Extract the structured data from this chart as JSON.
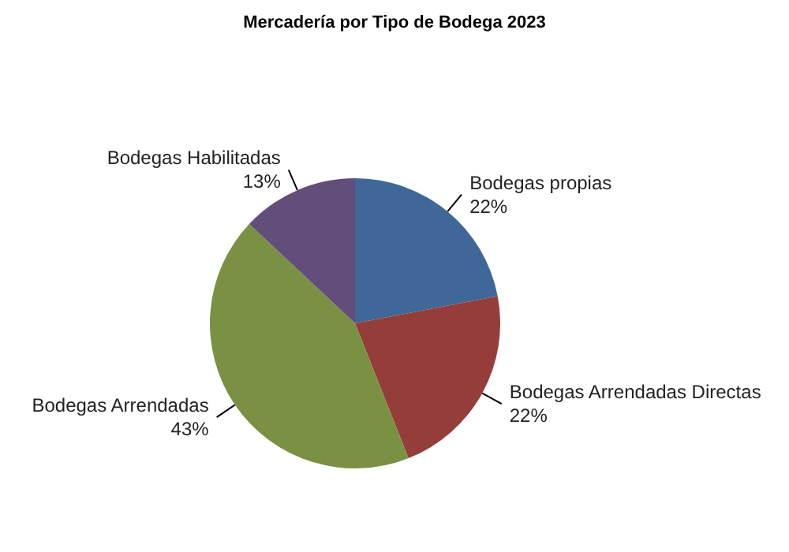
{
  "chart_data": {
    "type": "pie",
    "title": "Mercadería por Tipo de Bodega 2023",
    "categories": [
      "Bodegas propias",
      "Bodegas Arrendadas Directas",
      "Bodegas Arrendadas",
      "Bodegas Habilitadas"
    ],
    "values": [
      22,
      22,
      43,
      13
    ],
    "value_labels": [
      "22%",
      "22%",
      "43%",
      "13%"
    ],
    "colors": [
      "#3f6797",
      "#953d3a",
      "#7a9144",
      "#634d7b"
    ],
    "legend": false
  }
}
